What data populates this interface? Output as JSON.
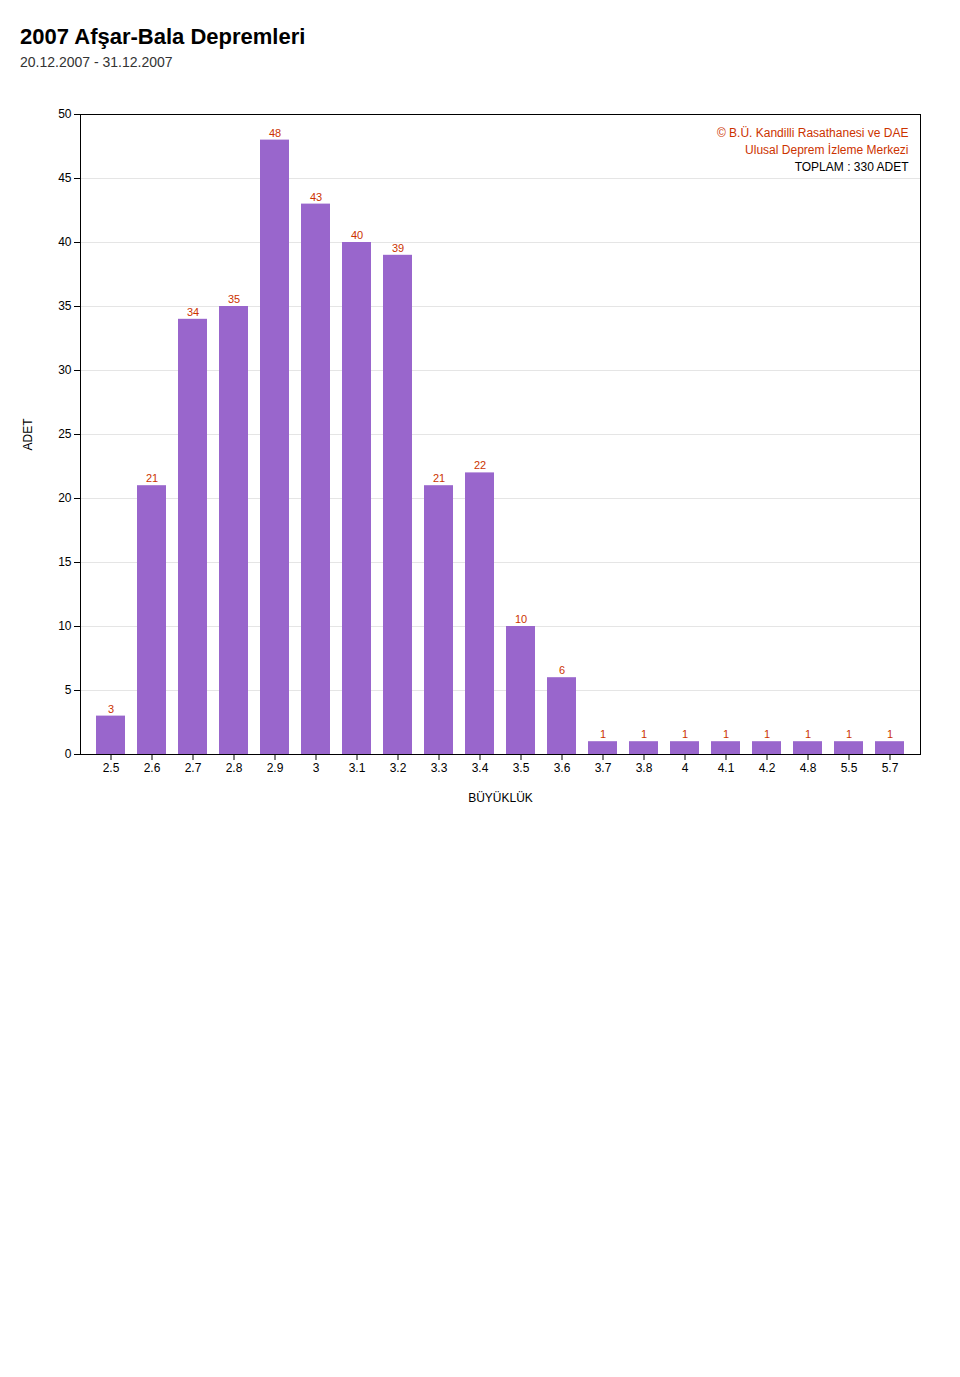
{
  "chart_data": {
    "type": "bar",
    "title": "2007 Afşar-Bala Depremleri",
    "subtitle": "20.12.2007 - 31.12.2007",
    "xlabel": "BÜYÜKLÜK",
    "ylabel": "ADET",
    "annotations": [
      "© B.Ü. Kandilli Rasathanesi ve DAE",
      "Ulusal Deprem İzleme Merkezi",
      "TOPLAM : 330 ADET"
    ],
    "categories": [
      "2.5",
      "2.6",
      "2.7",
      "2.8",
      "2.9",
      "3",
      "3.1",
      "3.2",
      "3.3",
      "3.4",
      "3.5",
      "3.6",
      "3.7",
      "3.8",
      "4",
      "4.1",
      "4.2",
      "4.8",
      "5.5",
      "5.7"
    ],
    "values": [
      3,
      21,
      34,
      35,
      48,
      43,
      40,
      39,
      21,
      22,
      10,
      6,
      1,
      1,
      1,
      1,
      1,
      1,
      1,
      1
    ],
    "color": "#9966cc",
    "ylim": [
      0,
      50
    ],
    "yticks": [
      0,
      5,
      10,
      15,
      20,
      25,
      30,
      35,
      40,
      45,
      50
    ],
    "grid": true,
    "data_labels": true
  }
}
